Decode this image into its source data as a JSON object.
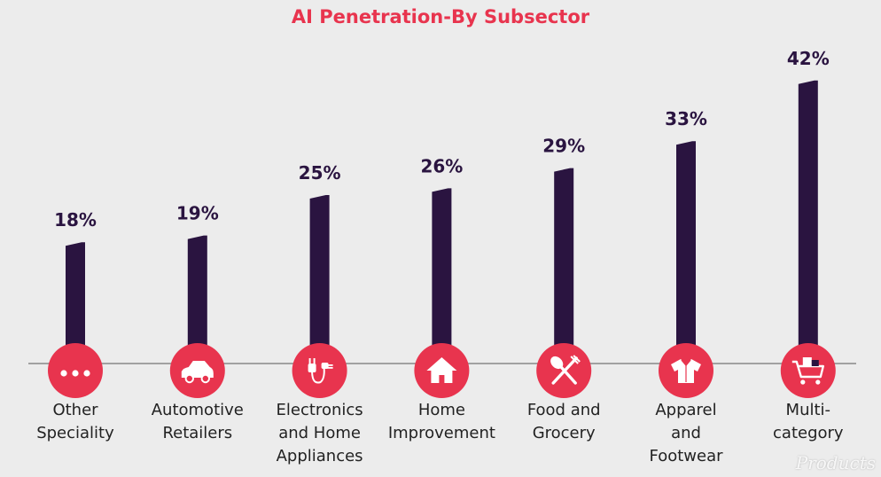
{
  "chart_data": {
    "type": "bar",
    "title": "AI Penetration-By Subsector",
    "xlabel": "",
    "ylabel": "",
    "ylim": [
      0,
      45
    ],
    "grid": false,
    "categories": [
      "Other Speciality",
      "Automotive Retailers",
      "Electronics and Home Appliances",
      "Home Improvement",
      "Food and Grocery",
      "Apparel and Footwear",
      "Multi-category"
    ],
    "category_lines": [
      [
        "Other",
        "Speciality"
      ],
      [
        "Automotive",
        "Retailers"
      ],
      [
        "Electronics",
        "and Home",
        "Appliances"
      ],
      [
        "Home",
        "Improvement"
      ],
      [
        "Food and",
        "Grocery"
      ],
      [
        "Apparel",
        "and",
        "Footwear"
      ],
      [
        "Multi-",
        "category"
      ]
    ],
    "values": [
      18,
      19,
      25,
      26,
      29,
      33,
      42
    ],
    "value_labels": [
      "18%",
      "19%",
      "25%",
      "26%",
      "29%",
      "33%",
      "42%"
    ],
    "icons": [
      "dots-icon",
      "car-icon",
      "plug-icon",
      "house-icon",
      "fork-spoon-icon",
      "shirt-icon",
      "cart-icon"
    ]
  },
  "colors": {
    "title": "#e8344e",
    "bar": "#2a1440",
    "icon_circle": "#e8344e",
    "baseline": "#888888",
    "background": "#ececec"
  },
  "watermark": "Products"
}
